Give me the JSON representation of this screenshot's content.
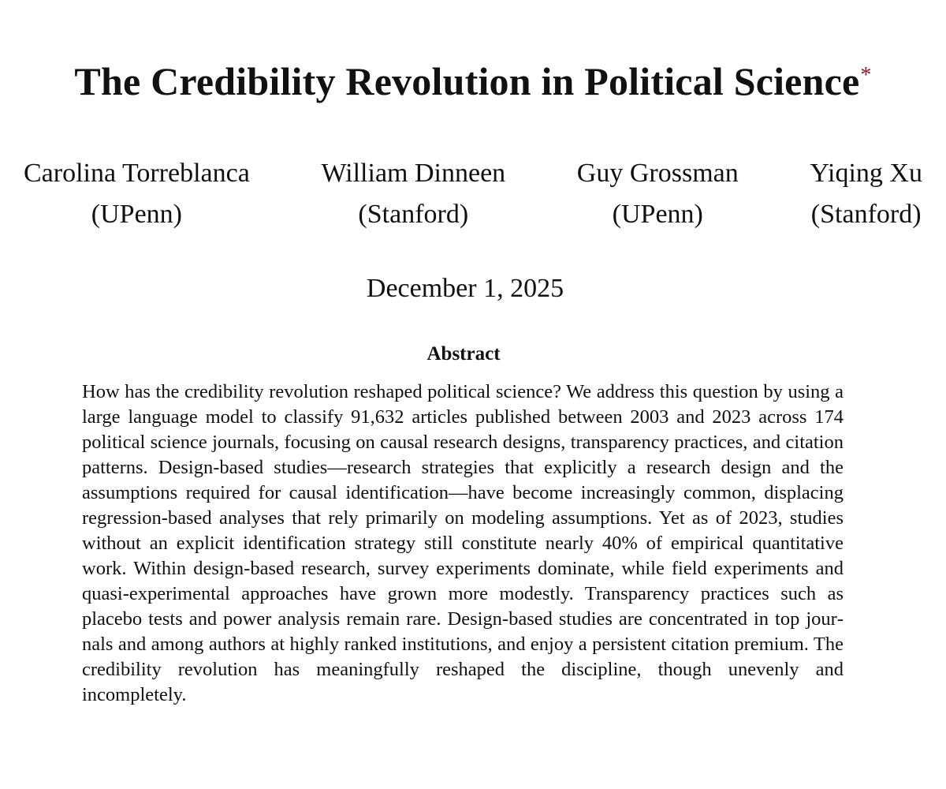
{
  "paper": {
    "title": "The Credibility Revolution in Political Science",
    "title_mark": "*",
    "mark_color": "#8b1a2b",
    "authors": [
      {
        "name": "Carolina Torreblanca",
        "affiliation": "(UPenn)"
      },
      {
        "name": "William Dinneen",
        "affiliation": "(Stanford)"
      },
      {
        "name": "Guy Grossman",
        "affiliation": "(UPenn)"
      },
      {
        "name": "Yiqing Xu",
        "affiliation": "(Stanford)"
      }
    ],
    "date": "December 1, 2025",
    "abstract_heading": "Abstract",
    "abstract_text": "How has the credibility revolution reshaped political science? We address this question by using a large language model to classify 91,632 articles published between 2003 and 2023 across 174 political science journals, focusing on causal research designs, trans­parency practices, and citation patterns. Design-based studies—research strategies that explicitly a research design and the assumptions required for causal identification—have become increasingly common, displacing regression-based analyses that rely primarily on modeling assumptions. Yet as of 2023, studies without an explicit identification strategy still constitute nearly 40% of empirical quantitative work. Within design-based research, survey experiments dominate, while field experiments and quasi-experimental approaches have grown more modestly. Transparency practices such as placebo tests and power analysis remain rare. Design-based studies are concentrated in top jour­nals and among authors at highly ranked institutions, and enjoy a persistent citation premium. The credibility revolution has meaningfully reshaped the discipline, though unevenly and incompletely."
  }
}
